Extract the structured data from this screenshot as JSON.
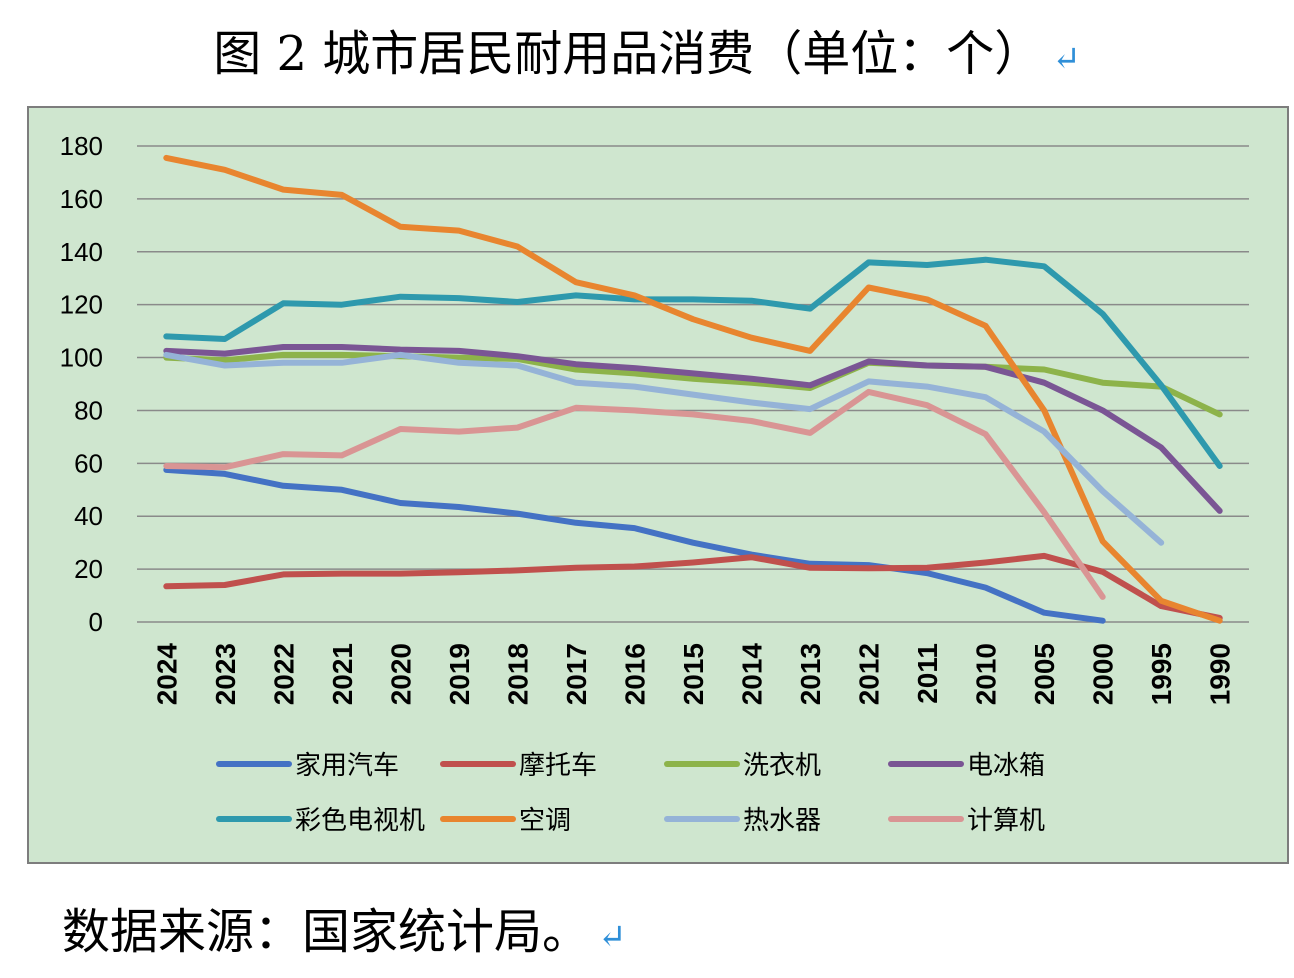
{
  "header": {
    "title": "图 2  城市居民耐用品消费（单位：个）",
    "return_mark": "↵"
  },
  "footer": {
    "source": "数据来源：国家统计局。",
    "return_mark": "↵"
  },
  "chart_data": {
    "type": "line",
    "title": "图 2  城市居民耐用品消费（单位：个）",
    "xlabel": "",
    "ylabel": "",
    "ylim": [
      0,
      180
    ],
    "yticks": [
      0,
      20,
      40,
      60,
      80,
      100,
      120,
      140,
      160,
      180
    ],
    "grid": true,
    "legend_position": "bottom",
    "categories": [
      "2024",
      "2023",
      "2022",
      "2021",
      "2020",
      "2019",
      "2018",
      "2017",
      "2016",
      "2015",
      "2014",
      "2013",
      "2012",
      "2011",
      "2010",
      "2005",
      "2000",
      "1995",
      "1990"
    ],
    "series": [
      {
        "name": "家用汽车",
        "color": "#4472c4",
        "values": [
          57.5,
          56,
          51.5,
          50,
          45,
          43.5,
          41,
          37.5,
          35.5,
          30,
          25.5,
          22,
          21.5,
          18.5,
          13,
          3.5,
          0.5,
          null,
          null
        ]
      },
      {
        "name": "摩托车",
        "color": "#c0504d",
        "values": [
          13.5,
          14,
          18,
          18.3,
          18.3,
          18.8,
          19.5,
          20.5,
          21,
          22.5,
          24.5,
          20.5,
          20.3,
          20.5,
          22.5,
          25,
          19,
          6,
          1.5
        ]
      },
      {
        "name": "洗衣机",
        "color": "#8db34a",
        "values": [
          100,
          99,
          101,
          101,
          100.5,
          100,
          99.5,
          95.5,
          94,
          92,
          90.5,
          88.5,
          98,
          97,
          96.5,
          95.5,
          90.5,
          89,
          78.5
        ]
      },
      {
        "name": "电冰箱",
        "color": "#7a5594",
        "values": [
          102.5,
          101.5,
          104,
          104,
          103,
          102.5,
          100.5,
          97.5,
          96,
          94,
          92,
          89.5,
          98.5,
          97,
          96.5,
          90.5,
          80,
          66,
          42
        ]
      },
      {
        "name": "彩色电视机",
        "color": "#2e99ad",
        "values": [
          108,
          107,
          120.5,
          120,
          123,
          122.5,
          121,
          123.5,
          122,
          122,
          121.5,
          118.5,
          136,
          135,
          137,
          134.5,
          116.5,
          89.5,
          59
        ]
      },
      {
        "name": "空调",
        "color": "#e8852f",
        "values": [
          175.5,
          171,
          163.5,
          161.5,
          149.5,
          148,
          142,
          128.5,
          123.5,
          114.5,
          107.5,
          102.5,
          126.5,
          122,
          112,
          80,
          30.5,
          8,
          0.5
        ]
      },
      {
        "name": "热水器",
        "color": "#95b3d7",
        "values": [
          101,
          97,
          98,
          98,
          101,
          98,
          97,
          90.5,
          89,
          86,
          83,
          80.5,
          91,
          89,
          85,
          72,
          49.5,
          30,
          null
        ]
      },
      {
        "name": "计算机",
        "color": "#d99594",
        "values": [
          59,
          58.5,
          63.5,
          63,
          73,
          72,
          73.5,
          81,
          80,
          78.5,
          76,
          71.5,
          87,
          82,
          71,
          41.5,
          9.5,
          null,
          null
        ]
      }
    ]
  }
}
